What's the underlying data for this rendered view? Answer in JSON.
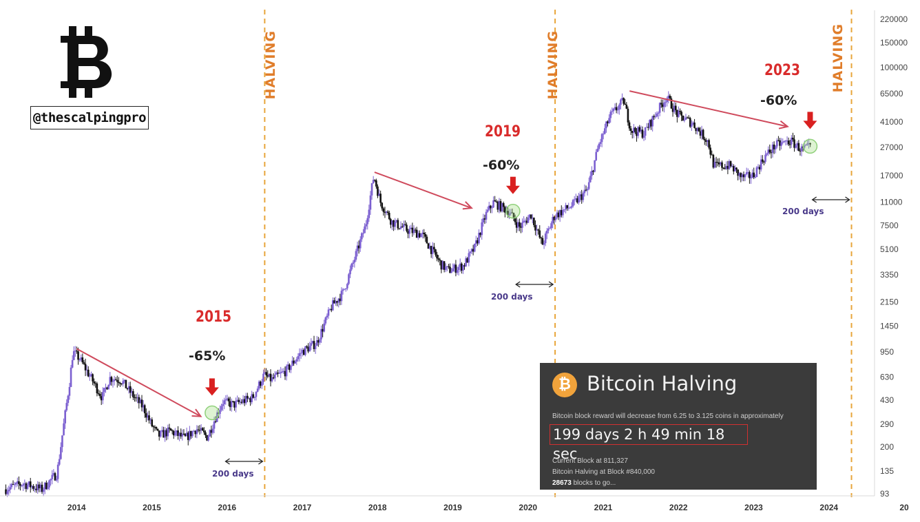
{
  "brand": {
    "handle": "@thescalpingpro"
  },
  "halving_label": "HALVING",
  "annotations": [
    {
      "year": "2015",
      "drop": "-65%",
      "window": "200 days"
    },
    {
      "year": "2019",
      "drop": "-60%",
      "window": "200 days"
    },
    {
      "year": "2023",
      "drop": "-60%",
      "window": "200 days"
    }
  ],
  "panel": {
    "coin_symbol": "₿",
    "title": "Bitcoin Halving",
    "description": "Bitcoin block reward will decrease from 6.25 to 3.125 coins in approximately",
    "countdown": "199 days 2 h 49 min 18 sec",
    "current_block": "Current Block at 811,327",
    "halving_block": "Bitcoin Halving at Block #840,000",
    "blocks_left_num": "28673",
    "blocks_left_text": " blocks to go..."
  },
  "colors": {
    "halving_line": "#e8a53a",
    "trend_arrow": "#cf4a5c",
    "drop_arrow": "#d92020",
    "up_candle": "#7b5fd0",
    "down_candle": "#111111"
  },
  "chart_data": {
    "type": "candlestick",
    "y_scale": "log",
    "ylim": [
      93,
      220000
    ],
    "y_ticks": [
      93,
      135,
      200,
      290,
      430,
      630,
      950,
      1450,
      2150,
      3350,
      5100,
      7500,
      11000,
      17000,
      27000,
      41000,
      65000,
      100000,
      150000,
      220000
    ],
    "x_ticks": [
      "2014",
      "2015",
      "2016",
      "2017",
      "2018",
      "2019",
      "2020",
      "2021",
      "2022",
      "2023",
      "2024",
      "20"
    ],
    "halving_dates": [
      2016.5,
      2020.36,
      2024.3
    ],
    "price_path": [
      [
        2013.05,
        100
      ],
      [
        2013.3,
        110
      ],
      [
        2013.55,
        100
      ],
      [
        2013.75,
        130
      ],
      [
        2013.92,
        600
      ],
      [
        2013.96,
        950
      ],
      [
        2014.05,
        850
      ],
      [
        2014.2,
        620
      ],
      [
        2014.35,
        450
      ],
      [
        2014.45,
        620
      ],
      [
        2014.6,
        600
      ],
      [
        2014.75,
        470
      ],
      [
        2014.9,
        380
      ],
      [
        2015.0,
        290
      ],
      [
        2015.1,
        240
      ],
      [
        2015.25,
        260
      ],
      [
        2015.45,
        230
      ],
      [
        2015.6,
        270
      ],
      [
        2015.75,
        235
      ],
      [
        2015.85,
        320
      ],
      [
        2015.95,
        420
      ],
      [
        2016.1,
        400
      ],
      [
        2016.35,
        450
      ],
      [
        2016.5,
        650
      ],
      [
        2016.6,
        600
      ],
      [
        2016.8,
        700
      ],
      [
        2017.0,
        950
      ],
      [
        2017.2,
        1100
      ],
      [
        2017.4,
        2000
      ],
      [
        2017.55,
        2500
      ],
      [
        2017.7,
        4300
      ],
      [
        2017.85,
        7500
      ],
      [
        2017.96,
        17000
      ],
      [
        2018.05,
        11000
      ],
      [
        2018.2,
        8000
      ],
      [
        2018.4,
        7000
      ],
      [
        2018.6,
        6500
      ],
      [
        2018.85,
        4000
      ],
      [
        2018.95,
        3600
      ],
      [
        2019.15,
        3900
      ],
      [
        2019.3,
        5200
      ],
      [
        2019.45,
        9000
      ],
      [
        2019.55,
        11000
      ],
      [
        2019.75,
        9500
      ],
      [
        2019.9,
        7300
      ],
      [
        2020.05,
        9000
      ],
      [
        2020.2,
        5500
      ],
      [
        2020.36,
        8800
      ],
      [
        2020.6,
        10500
      ],
      [
        2020.8,
        13500
      ],
      [
        2020.95,
        28000
      ],
      [
        2021.1,
        45000
      ],
      [
        2021.28,
        58000
      ],
      [
        2021.38,
        36000
      ],
      [
        2021.55,
        34000
      ],
      [
        2021.7,
        46000
      ],
      [
        2021.85,
        62000
      ],
      [
        2022.0,
        46000
      ],
      [
        2022.2,
        40000
      ],
      [
        2022.4,
        30000
      ],
      [
        2022.48,
        20000
      ],
      [
        2022.7,
        20000
      ],
      [
        2022.85,
        16500
      ],
      [
        2023.0,
        17000
      ],
      [
        2023.15,
        23000
      ],
      [
        2023.3,
        28000
      ],
      [
        2023.5,
        30000
      ],
      [
        2023.65,
        26000
      ],
      [
        2023.75,
        27000
      ]
    ],
    "trend_lines": [
      {
        "from": [
          2014.0,
          1000
        ],
        "to": [
          2015.65,
          330
        ]
      },
      {
        "from": [
          2017.96,
          18000
        ],
        "to": [
          2019.25,
          10000
        ]
      },
      {
        "from": [
          2021.35,
          68000
        ],
        "to": [
          2023.45,
          38000
        ]
      }
    ],
    "bottom_markers": [
      [
        2015.8,
        350
      ],
      [
        2019.8,
        9500
      ],
      [
        2023.75,
        27500
      ]
    ]
  }
}
